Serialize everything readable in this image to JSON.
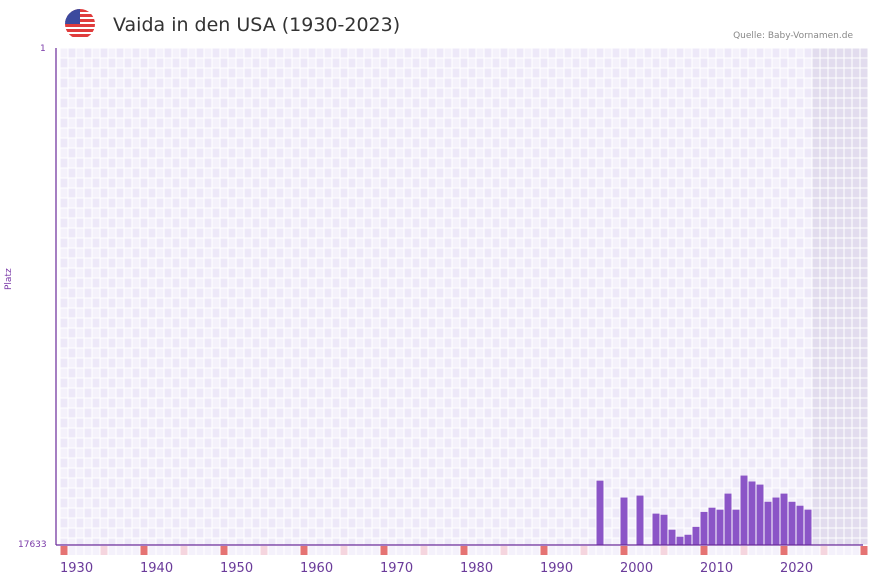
{
  "header": {
    "title": "Vaida in den USA (1930-2023)",
    "source": "Quelle: Baby-Vornamen.de",
    "flag_icon": "us-flag-icon"
  },
  "colors": {
    "bar": "#8b55c7",
    "axis": "#6a2a9a",
    "grid_a": "#ede8f8",
    "grid_b": "#f4f1fb",
    "future_shade": "#e2dcee",
    "decade_marker": "#e57373",
    "half_decade_marker": "#f5d5de"
  },
  "chart_data": {
    "type": "bar",
    "title": "Vaida in den USA (1930-2023)",
    "xlabel": "",
    "ylabel": "Platz",
    "y_axis_inverted": true,
    "ylim": [
      17633,
      1
    ],
    "y_ticks": [
      "1",
      "17633"
    ],
    "x_ticks": [
      "1930",
      "1940",
      "1950",
      "1960",
      "1970",
      "1980",
      "1990",
      "2000",
      "2010",
      "2020"
    ],
    "grid": true,
    "categories": [
      1995,
      1998,
      2000,
      2002,
      2003,
      2004,
      2005,
      2006,
      2007,
      2008,
      2009,
      2010,
      2011,
      2012,
      2013,
      2014,
      2015,
      2016,
      2017,
      2018,
      2019,
      2020,
      2021
    ],
    "series": [
      {
        "name": "Platz",
        "values": [
          15350,
          15950,
          15880,
          16520,
          16560,
          17090,
          17340,
          17270,
          16990,
          16460,
          16310,
          16380,
          15810,
          16380,
          15170,
          15380,
          15490,
          16100,
          15950,
          15810,
          16100,
          16240,
          16380
        ]
      }
    ]
  }
}
